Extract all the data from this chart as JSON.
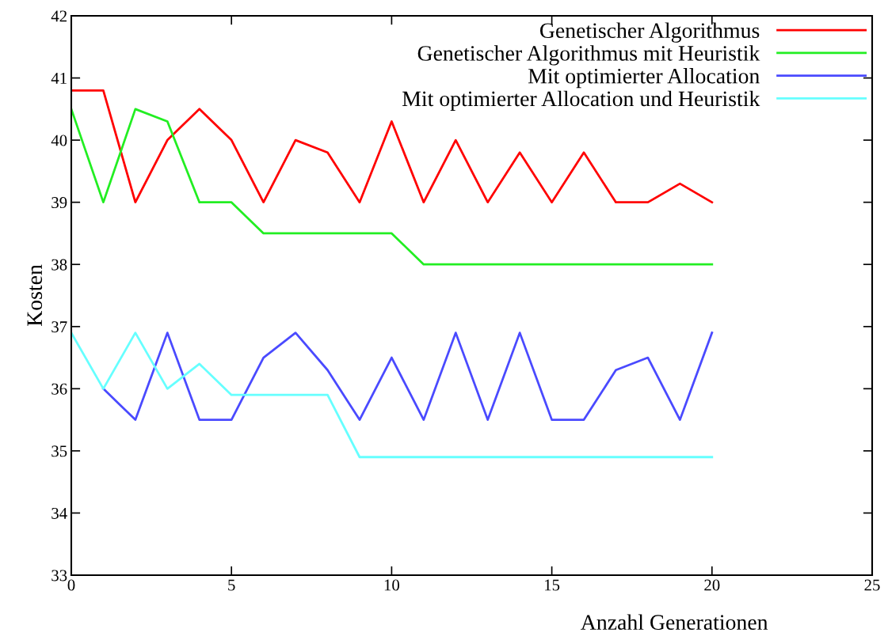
{
  "chart_data": {
    "type": "line",
    "xlabel": "Anzahl Generationen",
    "ylabel": "Kosten",
    "x": [
      0,
      1,
      2,
      3,
      4,
      5,
      6,
      7,
      8,
      9,
      10,
      11,
      12,
      13,
      14,
      15,
      16,
      17,
      18,
      19,
      20
    ],
    "xlim": [
      0,
      25
    ],
    "xticks": [
      0,
      5,
      10,
      15,
      20,
      25
    ],
    "ylim": [
      33,
      42
    ],
    "yticks": [
      33,
      34,
      35,
      36,
      37,
      38,
      39,
      40,
      41,
      42
    ],
    "grid": false,
    "legend": "top right",
    "marker": "none",
    "line_style": "solid",
    "series": [
      {
        "name": "Genetischer Algorithmus",
        "color": "#ff0000",
        "values": [
          40.8,
          40.8,
          39,
          40,
          40.5,
          40,
          39,
          40,
          39.8,
          39,
          40.3,
          39,
          40,
          39,
          39.8,
          39,
          39.8,
          39,
          39,
          39.3,
          39
        ]
      },
      {
        "name": "Genetischer Algorithmus mit Heuristik",
        "color": "#22ee22",
        "values": [
          40.5,
          39,
          40.5,
          40.3,
          39,
          39,
          38.5,
          38.5,
          38.5,
          38.5,
          38.5,
          38,
          38,
          38,
          38,
          38,
          38,
          38,
          38,
          38,
          38
        ]
      },
      {
        "name": "Mit optimierter Allocation",
        "color": "#4a4aff",
        "values": [
          null,
          36,
          35.5,
          36.9,
          35.5,
          35.5,
          36.5,
          36.9,
          36.3,
          35.5,
          36.5,
          35.5,
          36.9,
          35.5,
          36.9,
          35.5,
          35.5,
          36.3,
          36.5,
          35.5,
          36.9
        ]
      },
      {
        "name": "Mit optimierter Allocation und Heuristik",
        "color": "#66ffff",
        "values": [
          36.9,
          36,
          36.9,
          36,
          36.4,
          35.9,
          35.9,
          35.9,
          35.9,
          34.9,
          34.9,
          34.9,
          34.9,
          34.9,
          34.9,
          34.9,
          34.9,
          34.9,
          34.9,
          34.9,
          34.9
        ]
      }
    ]
  }
}
